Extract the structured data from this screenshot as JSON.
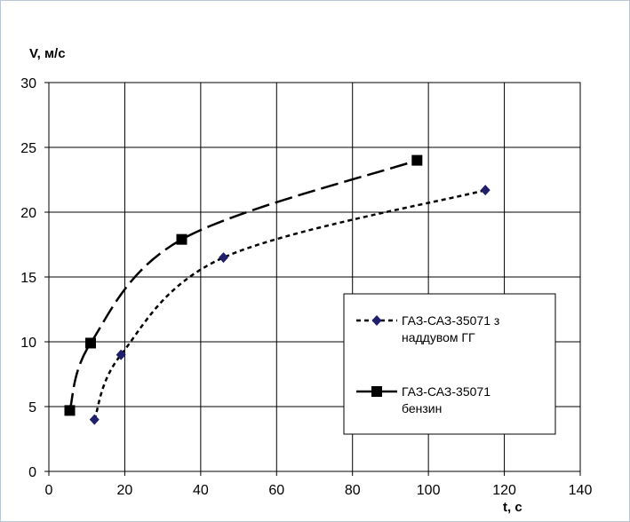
{
  "chart_data": {
    "type": "line",
    "ylabel": "V, м/с",
    "xlabel": "t, с",
    "xlim": [
      0,
      140
    ],
    "ylim": [
      0,
      30
    ],
    "x_ticks": [
      "0",
      "20",
      "40",
      "60",
      "80",
      "100",
      "120",
      "140"
    ],
    "y_ticks": [
      "0",
      "5",
      "10",
      "15",
      "20",
      "25",
      "30"
    ],
    "grid": true,
    "legend_position": "right",
    "series": [
      {
        "name": "ГАЗ-САЗ-35071 з наддувом ГГ",
        "legend_lines": [
          "ГАЗ-САЗ-35071 з",
          "наддувом ГГ"
        ],
        "marker": "diamond",
        "line_style": "short-dash",
        "color": "#000000",
        "marker_color": "#1f1f6b",
        "x": [
          12,
          19,
          46,
          115
        ],
        "y": [
          4,
          9,
          16.5,
          21.7
        ]
      },
      {
        "name": "ГАЗ-САЗ-35071 бензин",
        "legend_lines": [
          "ГАЗ-САЗ-35071",
          "бензин"
        ],
        "marker": "square",
        "line_style": "long-dash",
        "color": "#000000",
        "marker_color": "#000000",
        "x": [
          5.5,
          11,
          35,
          97
        ],
        "y": [
          4.7,
          9.9,
          17.9,
          24
        ]
      }
    ]
  }
}
